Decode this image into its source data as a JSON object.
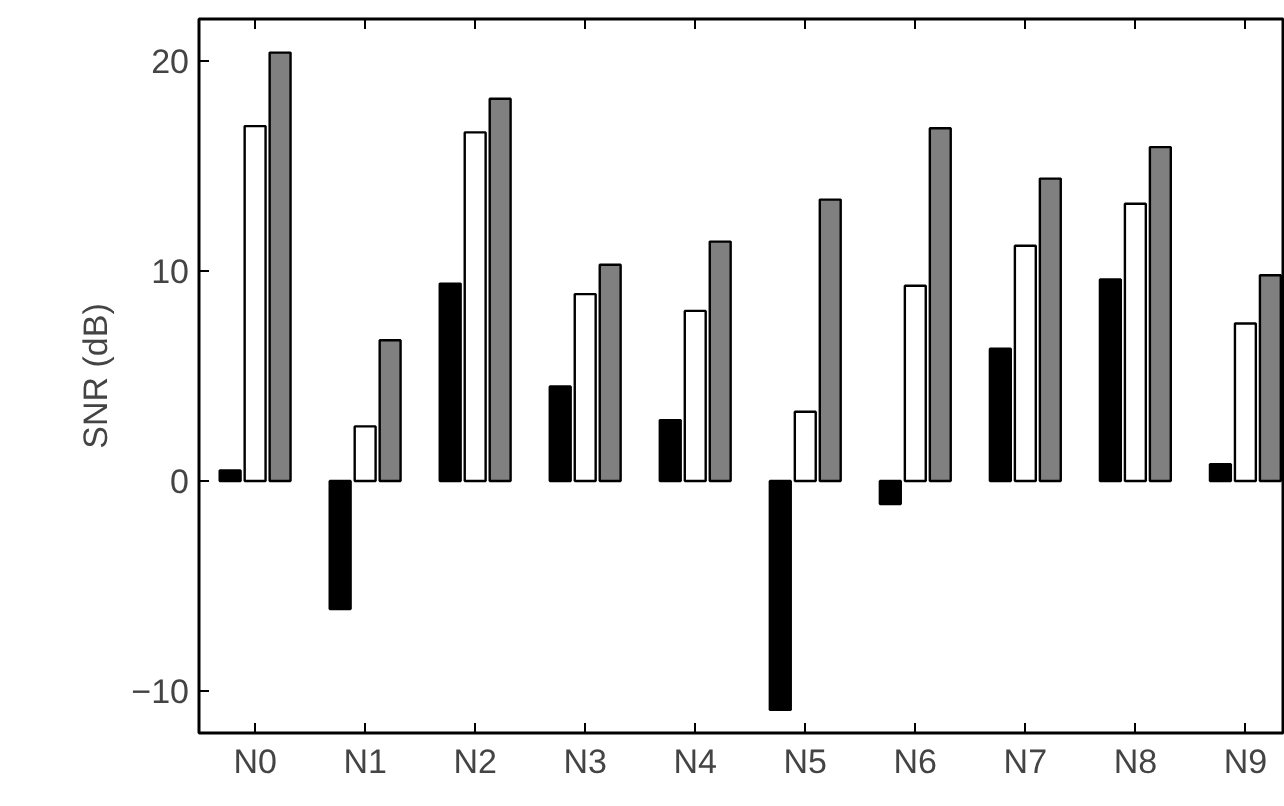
{
  "chart_data": {
    "type": "bar",
    "ylabel": "SNR (dB)",
    "categories": [
      "N0",
      "N1",
      "N2",
      "N3",
      "N4",
      "N5",
      "N6",
      "N7",
      "N8",
      "N9"
    ],
    "series": [
      {
        "color": "#000000",
        "values": [
          0.5,
          -6.1,
          9.4,
          4.5,
          2.9,
          -10.9,
          -1.1,
          6.3,
          9.6,
          0.8
        ]
      },
      {
        "color": "#ffffff",
        "values": [
          16.9,
          2.6,
          16.6,
          8.9,
          8.1,
          3.3,
          9.3,
          11.2,
          13.2,
          7.5
        ]
      },
      {
        "color": "#808080",
        "values": [
          20.4,
          6.7,
          18.2,
          10.3,
          11.4,
          13.4,
          16.8,
          14.4,
          15.9,
          9.8
        ]
      }
    ],
    "ylim": [
      -12,
      22
    ],
    "yticks": [
      {
        "value": -10,
        "label": "−10"
      },
      0,
      10,
      20
    ],
    "grid": false
  }
}
